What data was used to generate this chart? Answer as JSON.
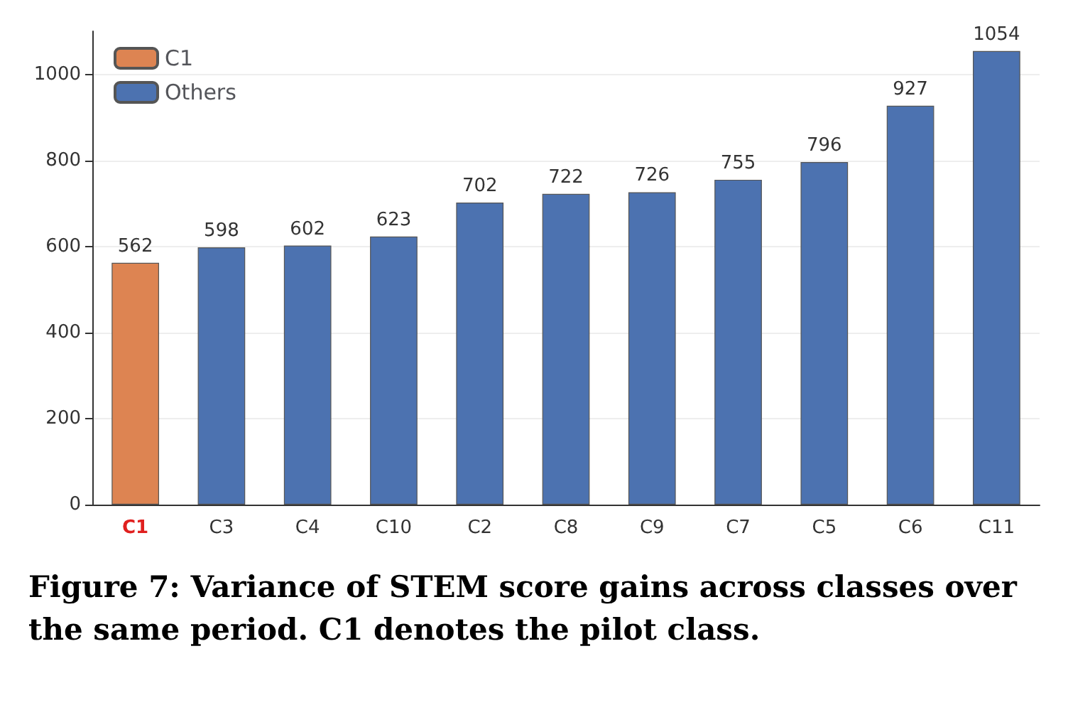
{
  "chart_data": {
    "type": "bar",
    "categories": [
      "C1",
      "C3",
      "C4",
      "C10",
      "C2",
      "C8",
      "C9",
      "C7",
      "C5",
      "C6",
      "C11"
    ],
    "series": [
      {
        "name": "C1",
        "color": "#dd8452",
        "values": [
          562,
          null,
          null,
          null,
          null,
          null,
          null,
          null,
          null,
          null,
          null
        ]
      },
      {
        "name": "Others",
        "color": "#4c72b0",
        "values": [
          null,
          598,
          602,
          623,
          702,
          722,
          726,
          755,
          796,
          927,
          1054
        ]
      }
    ],
    "ylim": [
      0,
      1100
    ],
    "yticks": [
      0,
      200,
      400,
      600,
      800,
      1000
    ],
    "grid": "y",
    "legend": "top left",
    "data_labels": true,
    "annotations": [
      "Figure 7: Variance of STEM score gains across classes over the same period. C1 denotes the pilot class."
    ]
  }
}
